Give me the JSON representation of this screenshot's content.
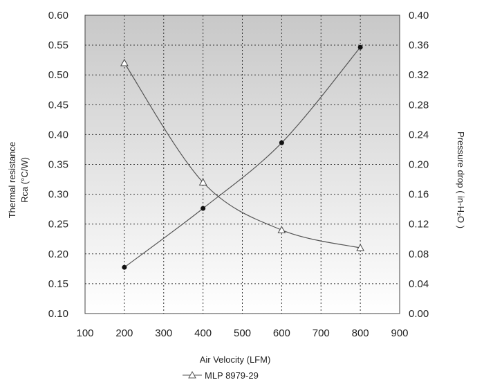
{
  "chart_data": {
    "type": "line",
    "xlabel": "Air Velocity (LFM)",
    "ylabel_left_line1": "Thermal resistance",
    "ylabel_left_line2": "Rca (°C/W)",
    "ylabel_right": "Pressure drop ( in-H₂O )",
    "xlim": [
      100,
      900
    ],
    "ylim_left": [
      0.1,
      0.6
    ],
    "ylim_right": [
      0.0,
      0.4
    ],
    "x_ticks": [
      "100",
      "200",
      "300",
      "400",
      "500",
      "600",
      "700",
      "800",
      "900"
    ],
    "y_left_ticks": [
      "0.10",
      "0.15",
      "0.20",
      "0.25",
      "0.30",
      "0.35",
      "0.40",
      "0.45",
      "0.50",
      "0.55",
      "0.60"
    ],
    "y_right_ticks": [
      "0.00",
      "0.04",
      "0.08",
      "0.12",
      "0.16",
      "0.20",
      "0.24",
      "0.28",
      "0.32",
      "0.36",
      "0.40"
    ],
    "grid": true,
    "legend_position": "bottom",
    "series": [
      {
        "name": "MLP 8979-29",
        "axis": "left",
        "marker": "triangle-open",
        "x": [
          200,
          400,
          600,
          800
        ],
        "y": [
          0.52,
          0.32,
          0.24,
          0.21
        ]
      },
      {
        "axis": "right",
        "marker": "circle-filled",
        "x": [
          200,
          400,
          600,
          800
        ],
        "y": [
          0.062,
          0.141,
          0.229,
          0.357
        ]
      }
    ],
    "colors": {
      "plot_top": "#c8c8c8",
      "plot_bottom": "#ffffff",
      "line": "#555555",
      "grid": "#333333"
    }
  }
}
